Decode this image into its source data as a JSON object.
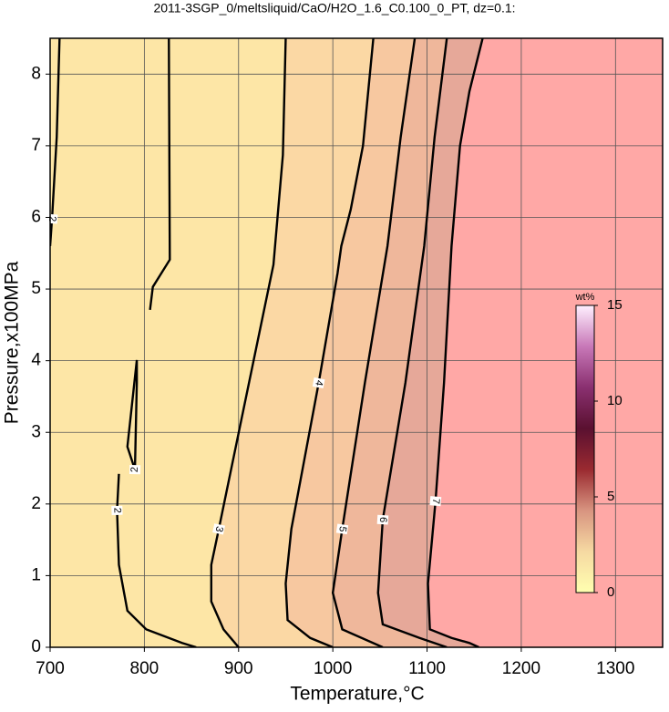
{
  "chart_data": {
    "type": "contour",
    "title": "2011-3SGP_0/meltsliquid/CaO/H2O_1.6_C0.100_0_PT, dz=0.1:",
    "x_label": "Temperature,°C",
    "y_label": "Pressure,x100MPa",
    "xlim": [
      700,
      1350
    ],
    "ylim": [
      0,
      8.5
    ],
    "xticks": [
      700,
      800,
      900,
      1000,
      1100,
      1200,
      1300
    ],
    "yticks": [
      0,
      1,
      2,
      3,
      4,
      5,
      6,
      7,
      8
    ],
    "grid": true,
    "background": "#fde6a6",
    "series": [
      {
        "name": "2",
        "color": "#000000",
        "fill": null,
        "x": [
          710,
          707,
          702,
          700
        ],
        "values": [
          8.5,
          7.12,
          5.98,
          5.6
        ]
      },
      {
        "name": "2",
        "color": "#000000",
        "fill": null,
        "x": [
          826,
          827,
          809,
          806,
          null,
          773,
          771,
          773,
          782,
          802,
          840,
          855
        ],
        "values": [
          8.5,
          5.41,
          5.03,
          4.71,
          null,
          2.42,
          1.91,
          1.15,
          0.51,
          0.25,
          0.06,
          0
        ]
      },
      {
        "name": "2",
        "color": "#000000",
        "fill": null,
        "x": [
          792,
          782,
          790,
          792,
          792
        ],
        "values": [
          4.01,
          2.8,
          2.48,
          3.69,
          4.01
        ]
      },
      {
        "name": "3",
        "color": "#000000",
        "fill": "#fbd8a4",
        "x": [
          950,
          947,
          937,
          903,
          879,
          871,
          871,
          884,
          900
        ],
        "values": [
          8.5,
          6.87,
          5.34,
          3.18,
          1.65,
          1.15,
          0.64,
          0.25,
          0
        ]
      },
      {
        "name": "4",
        "color": "#000000",
        "fill": "#f7c8a0",
        "x": [
          1043,
          1032,
          1019,
          1009,
          1005,
          985,
          956,
          950,
          952,
          976,
          1000
        ],
        "values": [
          8.5,
          7.0,
          6.11,
          5.6,
          5.22,
          3.69,
          1.65,
          0.89,
          0.38,
          0.13,
          0
        ]
      },
      {
        "name": "5",
        "color": "#000000",
        "fill": "#efb79b",
        "x": [
          1087,
          1072,
          1058,
          1034,
          1010,
          1000,
          1010,
          1053
        ],
        "values": [
          8.5,
          7.12,
          5.6,
          3.69,
          1.65,
          0.76,
          0.25,
          0
        ]
      },
      {
        "name": "6",
        "color": "#000000",
        "fill": "#e6a899",
        "x": [
          1121,
          1108,
          1097,
          1077,
          1053,
          1048,
          1053,
          1092,
          1121
        ],
        "values": [
          8.5,
          7.12,
          5.6,
          3.69,
          1.78,
          0.76,
          0.32,
          0.13,
          0
        ]
      },
      {
        "name": "7",
        "color": "#000000",
        "fill": "#ffa8a6",
        "x": [
          1159,
          1145,
          1135,
          1126,
          1118,
          1109,
          1101,
          1103,
          1126,
          1145,
          1155
        ],
        "values": [
          8.5,
          7.76,
          7.0,
          5.6,
          3.69,
          2.04,
          0.89,
          0.25,
          0.13,
          0.06,
          0
        ]
      }
    ],
    "colorbar": {
      "label": "wt%",
      "lim": [
        0,
        15
      ],
      "ticks": [
        0,
        5,
        10,
        15
      ],
      "colors": [
        "#ffffb0",
        "#f6d9a2",
        "#d89480",
        "#9a2a30",
        "#5a1030",
        "#8a3070",
        "#c878b8",
        "#fff0ff"
      ]
    }
  }
}
